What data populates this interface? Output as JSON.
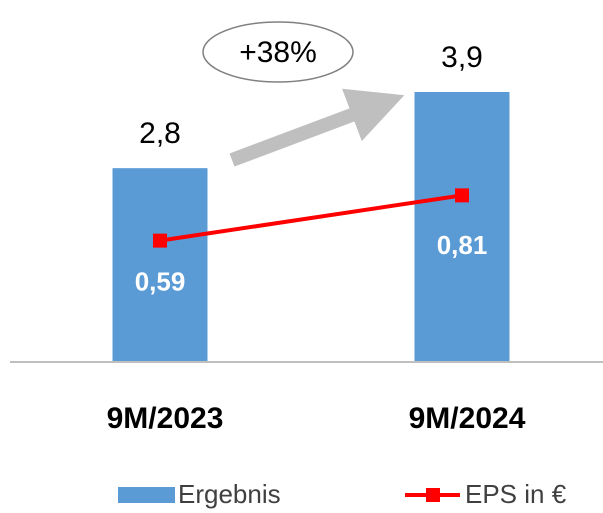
{
  "chart_data": {
    "type": "bar-line",
    "categories": [
      "9M/2023",
      "9M/2024"
    ],
    "series": [
      {
        "name": "Ergebnis",
        "type": "bar",
        "color": "#5b9bd5",
        "values": [
          2.8,
          3.9
        ],
        "value_labels": [
          "2,8",
          "3,9"
        ]
      },
      {
        "name": "EPS in €",
        "type": "line",
        "axis": "y2",
        "color": "#ff0000",
        "values": [
          0.59,
          0.81
        ],
        "value_labels": [
          "0,59",
          "0,81"
        ]
      }
    ],
    "annotations": [
      "+38%"
    ],
    "ylim": [
      0,
      5.2
    ],
    "y2lim": [
      0,
      1.75
    ]
  }
}
